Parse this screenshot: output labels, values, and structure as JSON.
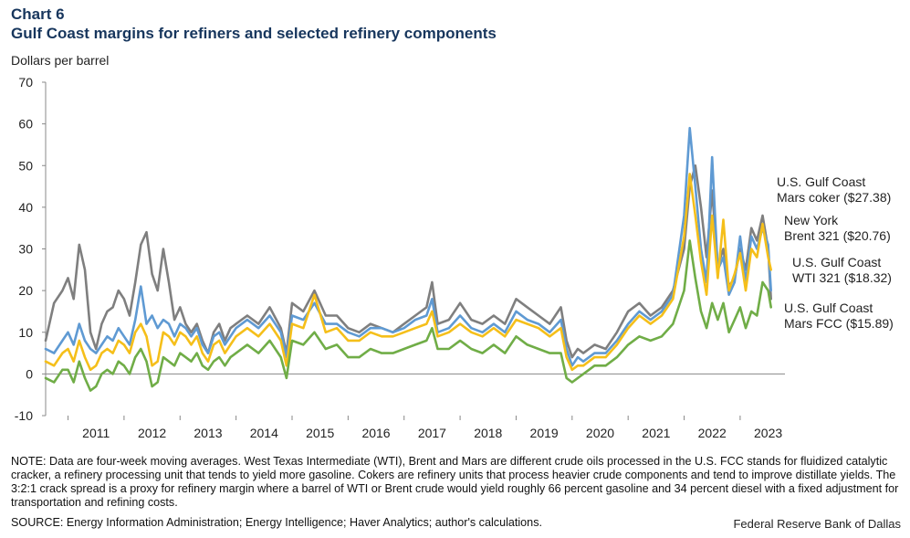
{
  "header": {
    "chart_number": "Chart 6",
    "title": "Gulf Coast margins for refiners and selected refinery components",
    "y_unit": "Dollars per barrel"
  },
  "footer": {
    "note": "NOTE: Data are four-week moving averages. West Texas Intermediate (WTI), Brent and Mars are different crude oils processed in the U.S. FCC stands for fluidized catalytic cracker, a refinery processing unit that tends to yield more gasoline. Cokers are refinery units that process heavier crude components and tend to improve distillate yields. The 3:2:1 crack spread is a proxy for refinery margin where a barrel of WTI or Brent crude would yield roughly 66 percent gasoline and 34 percent diesel with a fixed adjustment for transportation and refining costs.",
    "source": "SOURCE: Energy Information Administration; Energy Intelligence; Haver Analytics; author's calculations.",
    "publisher": "Federal Reserve Bank of Dallas"
  },
  "chart_data": {
    "type": "line",
    "x_unit": "year",
    "ylim": [
      -10,
      70
    ],
    "yticks": [
      -10,
      0,
      10,
      20,
      30,
      40,
      50,
      60,
      70
    ],
    "xlim": [
      2010.6,
      2023.8
    ],
    "xtick_labels": [
      "2011",
      "2012",
      "2013",
      "2014",
      "2015",
      "2016",
      "2017",
      "2018",
      "2019",
      "2020",
      "2021",
      "2022",
      "2023"
    ],
    "grid": false,
    "series": [
      {
        "name": "U.S. Gulf Coast WTI 321 ($18.32)",
        "color": "#7f7f7f",
        "x": [
          2010.6,
          2010.75,
          2010.9,
          2011.0,
          2011.1,
          2011.2,
          2011.3,
          2011.4,
          2011.5,
          2011.6,
          2011.7,
          2011.8,
          2011.9,
          2012.0,
          2012.1,
          2012.2,
          2012.3,
          2012.4,
          2012.5,
          2012.6,
          2012.7,
          2012.8,
          2012.9,
          2013.0,
          2013.1,
          2013.2,
          2013.3,
          2013.4,
          2013.5,
          2013.6,
          2013.7,
          2013.8,
          2013.9,
          2014.0,
          2014.2,
          2014.4,
          2014.6,
          2014.8,
          2014.9,
          2015.0,
          2015.2,
          2015.4,
          2015.6,
          2015.8,
          2016.0,
          2016.2,
          2016.4,
          2016.6,
          2016.8,
          2017.0,
          2017.2,
          2017.4,
          2017.5,
          2017.6,
          2017.8,
          2018.0,
          2018.2,
          2018.4,
          2018.6,
          2018.8,
          2019.0,
          2019.2,
          2019.4,
          2019.6,
          2019.8,
          2019.9,
          2020.0,
          2020.1,
          2020.2,
          2020.4,
          2020.6,
          2020.8,
          2021.0,
          2021.2,
          2021.4,
          2021.6,
          2021.8,
          2022.0,
          2022.1,
          2022.2,
          2022.3,
          2022.4,
          2022.5,
          2022.6,
          2022.7,
          2022.8,
          2022.9,
          2023.0,
          2023.1,
          2023.2,
          2023.3,
          2023.4,
          2023.5,
          2023.55
        ],
        "values": [
          8,
          17,
          20,
          23,
          18,
          31,
          25,
          10,
          6,
          12,
          15,
          16,
          20,
          18,
          14,
          22,
          31,
          34,
          24,
          20,
          30,
          22,
          13,
          16,
          12,
          10,
          12,
          8,
          5,
          10,
          12,
          8,
          11,
          12,
          14,
          12,
          16,
          11,
          5,
          17,
          15,
          20,
          14,
          14,
          11,
          10,
          12,
          11,
          10,
          12,
          14,
          16,
          22,
          12,
          13,
          17,
          13,
          12,
          14,
          12,
          18,
          16,
          14,
          12,
          16,
          8,
          4,
          6,
          5,
          7,
          6,
          10,
          15,
          17,
          14,
          16,
          20,
          30,
          45,
          50,
          40,
          28,
          44,
          26,
          30,
          21,
          23,
          30,
          25,
          35,
          32,
          38,
          30,
          18
        ]
      },
      {
        "name": "New York Brent 321 ($20.76)",
        "color": "#5f9ad3",
        "x": [
          2010.6,
          2010.75,
          2010.9,
          2011.0,
          2011.1,
          2011.2,
          2011.3,
          2011.4,
          2011.5,
          2011.6,
          2011.7,
          2011.8,
          2011.9,
          2012.0,
          2012.1,
          2012.2,
          2012.3,
          2012.4,
          2012.5,
          2012.6,
          2012.7,
          2012.8,
          2012.9,
          2013.0,
          2013.1,
          2013.2,
          2013.3,
          2013.4,
          2013.5,
          2013.6,
          2013.7,
          2013.8,
          2013.9,
          2014.0,
          2014.2,
          2014.4,
          2014.6,
          2014.8,
          2014.9,
          2015.0,
          2015.2,
          2015.4,
          2015.6,
          2015.8,
          2016.0,
          2016.2,
          2016.4,
          2016.6,
          2016.8,
          2017.0,
          2017.2,
          2017.4,
          2017.5,
          2017.6,
          2017.8,
          2018.0,
          2018.2,
          2018.4,
          2018.6,
          2018.8,
          2019.0,
          2019.2,
          2019.4,
          2019.6,
          2019.8,
          2019.9,
          2020.0,
          2020.1,
          2020.2,
          2020.4,
          2020.6,
          2020.8,
          2021.0,
          2021.2,
          2021.4,
          2021.6,
          2021.8,
          2022.0,
          2022.1,
          2022.2,
          2022.3,
          2022.4,
          2022.5,
          2022.6,
          2022.7,
          2022.8,
          2022.9,
          2023.0,
          2023.1,
          2023.2,
          2023.3,
          2023.4,
          2023.5,
          2023.55
        ],
        "values": [
          6,
          5,
          8,
          10,
          7,
          12,
          8,
          6,
          5,
          7,
          9,
          8,
          11,
          9,
          7,
          13,
          21,
          12,
          14,
          11,
          13,
          12,
          9,
          12,
          11,
          9,
          11,
          7,
          5,
          9,
          10,
          7,
          9,
          11,
          13,
          11,
          14,
          10,
          4,
          14,
          13,
          17,
          12,
          12,
          10,
          9,
          11,
          11,
          10,
          11,
          13,
          14,
          18,
          10,
          11,
          14,
          11,
          10,
          12,
          10,
          15,
          13,
          12,
          10,
          13,
          6,
          2,
          4,
          3,
          5,
          5,
          8,
          12,
          15,
          13,
          15,
          19,
          38,
          59,
          45,
          30,
          22,
          52,
          25,
          28,
          19,
          22,
          33,
          22,
          33,
          30,
          35,
          31,
          20
        ]
      },
      {
        "name": "U.S. Gulf Coast Mars coker ($27.38)",
        "color": "#f5bf1a",
        "x": [
          2010.6,
          2010.75,
          2010.9,
          2011.0,
          2011.1,
          2011.2,
          2011.3,
          2011.4,
          2011.5,
          2011.6,
          2011.7,
          2011.8,
          2011.9,
          2012.0,
          2012.1,
          2012.2,
          2012.3,
          2012.4,
          2012.5,
          2012.6,
          2012.7,
          2012.8,
          2012.9,
          2013.0,
          2013.1,
          2013.2,
          2013.3,
          2013.4,
          2013.5,
          2013.6,
          2013.7,
          2013.8,
          2013.9,
          2014.0,
          2014.2,
          2014.4,
          2014.6,
          2014.8,
          2014.9,
          2015.0,
          2015.2,
          2015.4,
          2015.6,
          2015.8,
          2016.0,
          2016.2,
          2016.4,
          2016.6,
          2016.8,
          2017.0,
          2017.2,
          2017.4,
          2017.5,
          2017.6,
          2017.8,
          2018.0,
          2018.2,
          2018.4,
          2018.6,
          2018.8,
          2019.0,
          2019.2,
          2019.4,
          2019.6,
          2019.8,
          2019.9,
          2020.0,
          2020.1,
          2020.2,
          2020.4,
          2020.6,
          2020.8,
          2021.0,
          2021.2,
          2021.4,
          2021.6,
          2021.8,
          2022.0,
          2022.1,
          2022.2,
          2022.3,
          2022.4,
          2022.5,
          2022.6,
          2022.7,
          2022.8,
          2022.9,
          2023.0,
          2023.1,
          2023.2,
          2023.3,
          2023.4,
          2023.5,
          2023.55
        ],
        "values": [
          3,
          2,
          5,
          6,
          3,
          8,
          4,
          1,
          2,
          5,
          6,
          5,
          8,
          7,
          5,
          10,
          12,
          9,
          2,
          3,
          10,
          9,
          7,
          10,
          9,
          7,
          9,
          5,
          3,
          7,
          8,
          5,
          7,
          9,
          11,
          9,
          12,
          8,
          2,
          12,
          11,
          19,
          10,
          11,
          8,
          8,
          10,
          9,
          9,
          10,
          11,
          12,
          15,
          9,
          10,
          12,
          10,
          9,
          11,
          9,
          13,
          12,
          11,
          9,
          11,
          4,
          1,
          2,
          2,
          4,
          4,
          7,
          11,
          14,
          12,
          14,
          18,
          33,
          48,
          38,
          27,
          19,
          38,
          23,
          37,
          20,
          24,
          29,
          20,
          30,
          28,
          36,
          28,
          25
        ]
      },
      {
        "name": "U.S. Gulf Coast Mars FCC ($15.89)",
        "color": "#70ad47",
        "x": [
          2010.6,
          2010.75,
          2010.9,
          2011.0,
          2011.1,
          2011.2,
          2011.3,
          2011.4,
          2011.5,
          2011.6,
          2011.7,
          2011.8,
          2011.9,
          2012.0,
          2012.1,
          2012.2,
          2012.3,
          2012.4,
          2012.5,
          2012.6,
          2012.7,
          2012.8,
          2012.9,
          2013.0,
          2013.1,
          2013.2,
          2013.3,
          2013.4,
          2013.5,
          2013.6,
          2013.7,
          2013.8,
          2013.9,
          2014.0,
          2014.2,
          2014.4,
          2014.6,
          2014.8,
          2014.9,
          2015.0,
          2015.2,
          2015.4,
          2015.6,
          2015.8,
          2016.0,
          2016.2,
          2016.4,
          2016.6,
          2016.8,
          2017.0,
          2017.2,
          2017.4,
          2017.5,
          2017.6,
          2017.8,
          2018.0,
          2018.2,
          2018.4,
          2018.6,
          2018.8,
          2019.0,
          2019.2,
          2019.4,
          2019.6,
          2019.8,
          2019.9,
          2020.0,
          2020.1,
          2020.2,
          2020.4,
          2020.6,
          2020.8,
          2021.0,
          2021.2,
          2021.4,
          2021.6,
          2021.8,
          2022.0,
          2022.1,
          2022.2,
          2022.3,
          2022.4,
          2022.5,
          2022.6,
          2022.7,
          2022.8,
          2022.9,
          2023.0,
          2023.1,
          2023.2,
          2023.3,
          2023.4,
          2023.5,
          2023.55
        ],
        "values": [
          -1,
          -2,
          1,
          1,
          -2,
          3,
          -1,
          -4,
          -3,
          0,
          1,
          0,
          3,
          2,
          0,
          4,
          6,
          3,
          -3,
          -2,
          4,
          3,
          2,
          5,
          4,
          3,
          5,
          2,
          1,
          3,
          4,
          2,
          4,
          5,
          7,
          5,
          8,
          4,
          -1,
          8,
          7,
          10,
          6,
          7,
          4,
          4,
          6,
          5,
          5,
          6,
          7,
          8,
          11,
          6,
          6,
          8,
          6,
          5,
          7,
          5,
          9,
          7,
          6,
          5,
          5,
          -1,
          -2,
          -1,
          0,
          2,
          2,
          4,
          7,
          9,
          8,
          9,
          12,
          20,
          32,
          23,
          15,
          11,
          17,
          13,
          17,
          10,
          13,
          16,
          11,
          15,
          14,
          22,
          20,
          16
        ]
      }
    ],
    "labels": [
      {
        "text": [
          "U.S. Gulf Coast",
          "Mars coker ($27.38)"
        ],
        "color": "#f5bf1a"
      },
      {
        "text": [
          "New York",
          "Brent 321 ($20.76)"
        ],
        "color": "#5f9ad3"
      },
      {
        "text": [
          "U.S. Gulf Coast",
          "WTI 321 ($18.32)"
        ],
        "color": "#7f7f7f"
      },
      {
        "text": [
          "U.S. Gulf Coast",
          "Mars FCC ($15.89)"
        ],
        "color": "#70ad47"
      }
    ]
  }
}
